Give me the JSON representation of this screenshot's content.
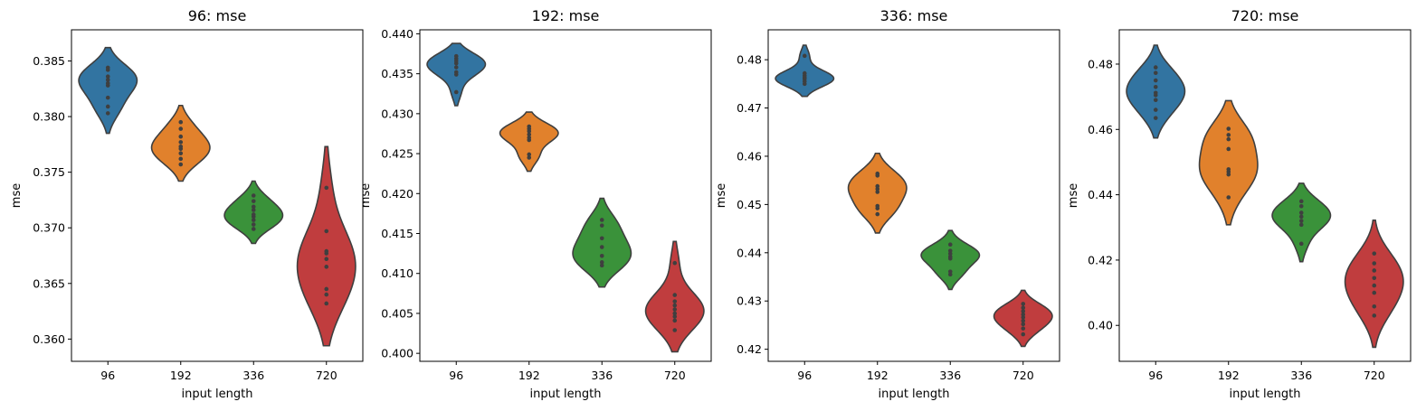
{
  "chart_data": [
    {
      "type": "violin",
      "title": "96: mse",
      "xlabel": "input length",
      "ylabel": "mse",
      "categories": [
        "96",
        "192",
        "336",
        "720"
      ],
      "ylim": [
        0.358,
        0.3878
      ],
      "yticks": [
        0.36,
        0.365,
        0.37,
        0.375,
        0.38,
        0.385
      ],
      "ytick_labels": [
        "0.360",
        "0.365",
        "0.370",
        "0.375",
        "0.380",
        "0.385"
      ],
      "colors": [
        "#3274a1",
        "#e1812c",
        "#3a923a",
        "#c03d3e"
      ],
      "series": [
        {
          "name": "96",
          "range": [
            0.3785,
            0.3862
          ],
          "peak": 0.383,
          "points": [
            0.3803,
            0.3809,
            0.3817,
            0.3828,
            0.383,
            0.3833,
            0.3836,
            0.3842,
            0.3844
          ]
        },
        {
          "name": "192",
          "range": [
            0.3742,
            0.381
          ],
          "peak": 0.3772,
          "points": [
            0.3757,
            0.3762,
            0.3767,
            0.3771,
            0.3773,
            0.3777,
            0.3782,
            0.3789,
            0.3795
          ]
        },
        {
          "name": "336",
          "range": [
            0.3686,
            0.3742
          ],
          "peak": 0.371,
          "points": [
            0.3699,
            0.3703,
            0.3707,
            0.371,
            0.3712,
            0.3716,
            0.3719,
            0.3724,
            0.3729
          ]
        },
        {
          "name": "720",
          "range": [
            0.3594,
            0.3773
          ],
          "peak": 0.3665,
          "points": [
            0.3632,
            0.364,
            0.3645,
            0.3665,
            0.3672,
            0.3677,
            0.3679,
            0.3697,
            0.3736
          ]
        }
      ]
    },
    {
      "type": "violin",
      "title": "192: mse",
      "xlabel": "input length",
      "ylabel": "mse",
      "categories": [
        "96",
        "192",
        "336",
        "720"
      ],
      "ylim": [
        0.399,
        0.4405
      ],
      "yticks": [
        0.4,
        0.405,
        0.41,
        0.415,
        0.42,
        0.425,
        0.43,
        0.435,
        0.44
      ],
      "ytick_labels": [
        "0.400",
        "0.405",
        "0.410",
        "0.415",
        "0.420",
        "0.425",
        "0.430",
        "0.435",
        "0.440"
      ],
      "colors": [
        "#3274a1",
        "#e1812c",
        "#3a923a",
        "#c03d3e"
      ],
      "series": [
        {
          "name": "96",
          "range": [
            0.431,
            0.4388
          ],
          "peak": 0.4361,
          "points": [
            0.4327,
            0.4349,
            0.4352,
            0.4358,
            0.4363,
            0.4366,
            0.4369,
            0.4372
          ]
        },
        {
          "name": "192",
          "range": [
            0.4228,
            0.4302
          ],
          "peak": 0.4277,
          "points": [
            0.4245,
            0.4249,
            0.4267,
            0.427,
            0.4274,
            0.4278,
            0.4281,
            0.4284
          ]
        },
        {
          "name": "336",
          "range": [
            0.4083,
            0.4194
          ],
          "peak": 0.4127,
          "points": [
            0.411,
            0.4114,
            0.4122,
            0.4133,
            0.4144,
            0.416,
            0.4167
          ]
        },
        {
          "name": "720",
          "range": [
            0.4002,
            0.414
          ],
          "peak": 0.4053,
          "points": [
            0.4029,
            0.4041,
            0.4046,
            0.405,
            0.4055,
            0.406,
            0.4065,
            0.4073,
            0.4113
          ]
        }
      ]
    },
    {
      "type": "violin",
      "title": "336: mse",
      "xlabel": "input length",
      "ylabel": "mse",
      "categories": [
        "96",
        "192",
        "336",
        "720"
      ],
      "ylim": [
        0.4175,
        0.4862
      ],
      "yticks": [
        0.42,
        0.43,
        0.44,
        0.45,
        0.46,
        0.47,
        0.48
      ],
      "ytick_labels": [
        "0.42",
        "0.43",
        "0.44",
        "0.45",
        "0.46",
        "0.47",
        "0.48"
      ],
      "colors": [
        "#3274a1",
        "#e1812c",
        "#3a923a",
        "#c03d3e"
      ],
      "series": [
        {
          "name": "96",
          "range": [
            0.4724,
            0.483
          ],
          "peak": 0.476,
          "points": [
            0.475,
            0.4755,
            0.476,
            0.4763,
            0.4767,
            0.4772,
            0.4808
          ]
        },
        {
          "name": "192",
          "range": [
            0.4441,
            0.4606
          ],
          "peak": 0.4535,
          "points": [
            0.448,
            0.4492,
            0.4497,
            0.4526,
            0.4532,
            0.4538,
            0.456,
            0.4564
          ]
        },
        {
          "name": "336",
          "range": [
            0.4324,
            0.4446
          ],
          "peak": 0.439,
          "points": [
            0.4355,
            0.4361,
            0.4388,
            0.4392,
            0.4398,
            0.4404,
            0.4417
          ]
        },
        {
          "name": "720",
          "range": [
            0.4206,
            0.4322
          ],
          "peak": 0.427,
          "points": [
            0.4231,
            0.4243,
            0.4252,
            0.4259,
            0.4266,
            0.4272,
            0.4279,
            0.4286,
            0.4294
          ]
        }
      ]
    },
    {
      "type": "violin",
      "title": "720: mse",
      "xlabel": "input length",
      "ylabel": "mse",
      "categories": [
        "96",
        "192",
        "336",
        "720"
      ],
      "ylim": [
        0.389,
        0.4905
      ],
      "yticks": [
        0.4,
        0.42,
        0.44,
        0.46,
        0.48
      ],
      "ytick_labels": [
        "0.40",
        "0.42",
        "0.44",
        "0.46",
        "0.48"
      ],
      "colors": [
        "#3274a1",
        "#e1812c",
        "#3a923a",
        "#c03d3e"
      ],
      "series": [
        {
          "name": "96",
          "range": [
            0.4574,
            0.4858
          ],
          "peak": 0.4715,
          "points": [
            0.4635,
            0.466,
            0.469,
            0.4705,
            0.4712,
            0.473,
            0.475,
            0.4773,
            0.479
          ]
        },
        {
          "name": "192",
          "range": [
            0.4308,
            0.4688
          ],
          "peak": 0.447,
          "points": [
            0.4392,
            0.4462,
            0.447,
            0.4478,
            0.454,
            0.457,
            0.4583,
            0.4602
          ]
        },
        {
          "name": "336",
          "range": [
            0.4195,
            0.4435
          ],
          "peak": 0.433,
          "points": [
            0.425,
            0.4308,
            0.432,
            0.4333,
            0.4345,
            0.4365,
            0.438
          ]
        },
        {
          "name": "720",
          "range": [
            0.3933,
            0.4322
          ],
          "peak": 0.412,
          "points": [
            0.403,
            0.4058,
            0.41,
            0.4122,
            0.4145,
            0.4168,
            0.419,
            0.422
          ]
        }
      ]
    }
  ]
}
